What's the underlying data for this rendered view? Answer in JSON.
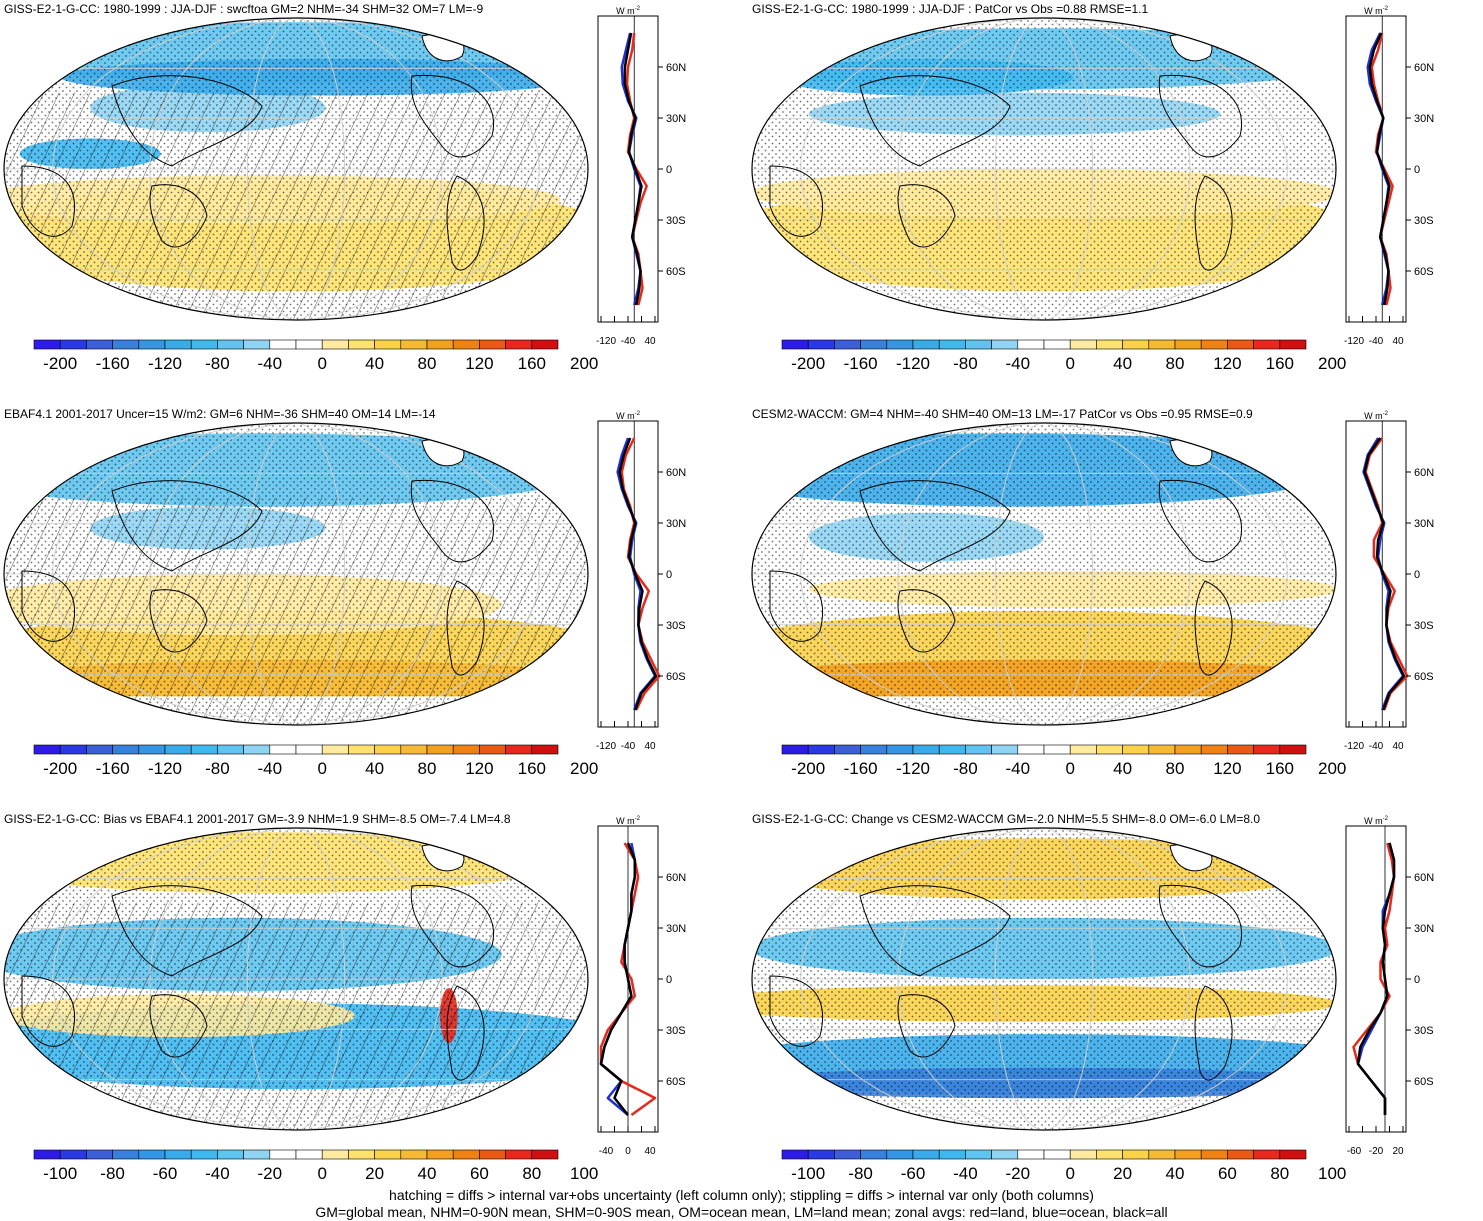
{
  "colors": {
    "cool": [
      "#2d1ce6",
      "#2a39e2",
      "#3c5fd8",
      "#3780dc",
      "#3596e6",
      "#3aabea",
      "#3eb8ef",
      "#5fc4f0",
      "#8fd4f2"
    ],
    "warm": [
      "#ffeaa0",
      "#fde26e",
      "#fad24a",
      "#f5b936",
      "#f3a020",
      "#f08214",
      "#eb5a14",
      "#e8281c",
      "#d01010"
    ],
    "land": "#e8281c",
    "ocean": "#1f2fd8",
    "all": "#000000"
  },
  "footnote": {
    "line1": "hatching = diffs > internal var+obs uncertainty (left column only); stippling = diffs > internal var only (both columns)",
    "line2": "GM=global mean, NHM=0-90N mean, SHM=0-90S mean, OM=ocean mean, LM=land mean; zonal avgs: red=land, blue=ocean, black=all"
  },
  "panels": [
    {
      "title": "GISS-E2-1-G-CC: 1980-1999 : JJA-DJF : swcftoa GM=2 NHM=-34 SHM=32 OM=7 LM=-9",
      "pattern": "hatch",
      "zonal_unit": "W m",
      "zonal_unit_sup": "-2",
      "lat_ticks": [
        "60N",
        "30N",
        "0",
        "30S",
        "60S"
      ],
      "x_ticks": [
        "-120",
        "-40",
        "40"
      ],
      "colorbar_labels": [
        "-200",
        "-160",
        "-120",
        "-80",
        "-40",
        "0",
        "40",
        "80",
        "120",
        "160",
        "200"
      ]
    },
    {
      "title": "GISS-E2-1-G-CC: 1980-1999 : JJA-DJF : PatCor vs Obs =0.88 RMSE=1.1",
      "pattern": "stipple",
      "zonal_unit": "W m",
      "zonal_unit_sup": "-2",
      "lat_ticks": [
        "60N",
        "30N",
        "0",
        "30S",
        "60S"
      ],
      "x_ticks": [
        "-120",
        "-40",
        "40"
      ],
      "colorbar_labels": [
        "-200",
        "-160",
        "-120",
        "-80",
        "-40",
        "0",
        "40",
        "80",
        "120",
        "160",
        "200"
      ]
    },
    {
      "title": "EBAF4.1 2001-2017 Uncer=15 W/m2: GM=6 NHM=-36 SHM=40 OM=14 LM=-14",
      "pattern": "hatch",
      "zonal_unit": "W m",
      "zonal_unit_sup": "-2",
      "lat_ticks": [
        "60N",
        "30N",
        "0",
        "30S",
        "60S"
      ],
      "x_ticks": [
        "-120",
        "-40",
        "40"
      ],
      "colorbar_labels": [
        "-200",
        "-160",
        "-120",
        "-80",
        "-40",
        "0",
        "40",
        "80",
        "120",
        "160",
        "200"
      ]
    },
    {
      "title": "CESM2-WACCM: GM=4 NHM=-40 SHM=40 OM=13 LM=-17 PatCor vs Obs =0.95 RMSE=0.9",
      "pattern": "stipple",
      "zonal_unit": "W m",
      "zonal_unit_sup": "-2",
      "lat_ticks": [
        "60N",
        "30N",
        "0",
        "30S",
        "60S"
      ],
      "x_ticks": [
        "-120",
        "-40",
        "40"
      ],
      "colorbar_labels": [
        "-200",
        "-160",
        "-120",
        "-80",
        "-40",
        "0",
        "40",
        "80",
        "120",
        "160",
        "200"
      ]
    },
    {
      "title": "GISS-E2-1-G-CC: Bias vs EBAF4.1 2001-2017 GM=-3.9 NHM=1.9 SHM=-8.5 OM=-7.4 LM=4.8",
      "pattern": "hatch",
      "zonal_unit": "W m",
      "zonal_unit_sup": "-2",
      "lat_ticks": [
        "60N",
        "30N",
        "0",
        "30S",
        "60S"
      ],
      "x_ticks": [
        "-40",
        "0",
        "40"
      ],
      "colorbar_labels": [
        "-100",
        "-80",
        "-60",
        "-40",
        "-20",
        "0",
        "20",
        "40",
        "60",
        "80",
        "100"
      ]
    },
    {
      "title": "GISS-E2-1-G-CC: Change vs CESM2-WACCM GM=-2.0 NHM=5.5 SHM=-8.0 OM=-6.0 LM=8.0",
      "pattern": "stipple",
      "zonal_unit": "W m",
      "zonal_unit_sup": "-2",
      "lat_ticks": [
        "60N",
        "30N",
        "0",
        "30S",
        "60S"
      ],
      "x_ticks": [
        "-60",
        "-20",
        "20"
      ],
      "colorbar_labels": [
        "-100",
        "-80",
        "-60",
        "-40",
        "-20",
        "0",
        "20",
        "40",
        "60",
        "80",
        "100"
      ]
    }
  ],
  "chart_data": [
    {
      "type": "line",
      "x_axis": "W m-2",
      "y_axis": "latitude",
      "lat": [
        80,
        70,
        60,
        50,
        40,
        30,
        20,
        10,
        0,
        -10,
        -20,
        -30,
        -40,
        -50,
        -60,
        -70,
        -80
      ],
      "xlim": [
        -160,
        100
      ],
      "series": [
        {
          "color_key": "land",
          "values": [
            0,
            -10,
            -30,
            -35,
            -20,
            0,
            -20,
            -30,
            10,
            60,
            30,
            10,
            -10,
            20,
            30,
            40,
            20
          ]
        },
        {
          "color_key": "ocean",
          "values": [
            -20,
            -40,
            -60,
            -55,
            -30,
            10,
            -10,
            -25,
            0,
            30,
            20,
            5,
            -10,
            10,
            30,
            20,
            0
          ]
        },
        {
          "color_key": "all",
          "values": [
            -15,
            -30,
            -45,
            -45,
            -25,
            5,
            -15,
            -25,
            5,
            35,
            20,
            5,
            -10,
            15,
            30,
            25,
            10
          ]
        }
      ]
    },
    {
      "type": "line",
      "x_axis": "W m-2",
      "y_axis": "latitude",
      "lat": [
        80,
        70,
        60,
        50,
        40,
        30,
        20,
        10,
        0,
        -10,
        -20,
        -30,
        -40,
        -50,
        -60,
        -70,
        -80
      ],
      "xlim": [
        -160,
        100
      ],
      "series": [
        {
          "color_key": "land",
          "values": [
            0,
            -20,
            -50,
            -40,
            -20,
            5,
            -20,
            -30,
            10,
            50,
            30,
            10,
            -10,
            20,
            30,
            40,
            20
          ]
        },
        {
          "color_key": "ocean",
          "values": [
            -10,
            -50,
            -70,
            -60,
            -30,
            5,
            -10,
            -25,
            0,
            30,
            20,
            5,
            -10,
            10,
            30,
            20,
            0
          ]
        },
        {
          "color_key": "all",
          "values": [
            -5,
            -40,
            -60,
            -50,
            -25,
            5,
            -15,
            -25,
            5,
            35,
            20,
            5,
            -10,
            15,
            30,
            25,
            10
          ]
        }
      ]
    },
    {
      "type": "line",
      "x_axis": "W m-2",
      "y_axis": "latitude",
      "lat": [
        80,
        70,
        60,
        50,
        40,
        30,
        20,
        10,
        0,
        -10,
        -20,
        -30,
        -40,
        -50,
        -60,
        -70,
        -80
      ],
      "xlim": [
        -160,
        100
      ],
      "series": [
        {
          "color_key": "land",
          "values": [
            0,
            -40,
            -60,
            -50,
            -20,
            0,
            -20,
            -30,
            10,
            70,
            40,
            20,
            40,
            80,
            120,
            50,
            10
          ]
        },
        {
          "color_key": "ocean",
          "values": [
            -30,
            -60,
            -80,
            -60,
            -30,
            10,
            -10,
            -20,
            0,
            30,
            20,
            20,
            30,
            60,
            100,
            30,
            0
          ]
        },
        {
          "color_key": "all",
          "values": [
            -20,
            -50,
            -70,
            -55,
            -25,
            5,
            -15,
            -25,
            5,
            40,
            25,
            20,
            35,
            65,
            105,
            35,
            5
          ]
        }
      ]
    },
    {
      "type": "line",
      "x_axis": "W m-2",
      "y_axis": "latitude",
      "lat": [
        80,
        70,
        60,
        50,
        40,
        30,
        20,
        10,
        0,
        -10,
        -20,
        -30,
        -40,
        -50,
        -60,
        -70,
        -80
      ],
      "xlim": [
        -160,
        100
      ],
      "series": [
        {
          "color_key": "land",
          "values": [
            0,
            -60,
            -80,
            -50,
            -20,
            0,
            -40,
            -40,
            10,
            60,
            30,
            20,
            40,
            80,
            120,
            40,
            10
          ]
        },
        {
          "color_key": "ocean",
          "values": [
            -20,
            -70,
            -90,
            -60,
            -30,
            10,
            -10,
            -20,
            0,
            30,
            20,
            20,
            30,
            60,
            100,
            30,
            0
          ]
        },
        {
          "color_key": "all",
          "values": [
            -10,
            -65,
            -85,
            -55,
            -25,
            5,
            -20,
            -25,
            5,
            40,
            25,
            20,
            35,
            65,
            105,
            35,
            5
          ]
        }
      ]
    },
    {
      "type": "line",
      "x_axis": "W m-2",
      "y_axis": "latitude",
      "lat": [
        80,
        70,
        60,
        50,
        40,
        30,
        20,
        10,
        0,
        -10,
        -20,
        -30,
        -40,
        -50,
        -60,
        -70,
        -80
      ],
      "xlim": [
        -40,
        40
      ],
      "series": [
        {
          "color_key": "land",
          "values": [
            -5,
            10,
            15,
            10,
            5,
            0,
            -5,
            -10,
            5,
            10,
            -10,
            -30,
            -40,
            -40,
            -10,
            40,
            5
          ]
        },
        {
          "color_key": "ocean",
          "values": [
            5,
            10,
            10,
            5,
            5,
            0,
            -5,
            -5,
            0,
            5,
            -10,
            -25,
            -35,
            -40,
            -10,
            -30,
            0
          ]
        },
        {
          "color_key": "all",
          "values": [
            0,
            10,
            10,
            5,
            5,
            0,
            -5,
            -5,
            0,
            5,
            -10,
            -25,
            -35,
            -40,
            -10,
            -20,
            0
          ]
        }
      ]
    },
    {
      "type": "line",
      "x_axis": "W m-2",
      "y_axis": "latitude",
      "lat": [
        80,
        70,
        60,
        50,
        40,
        30,
        20,
        10,
        0,
        -10,
        -20,
        -30,
        -40,
        -50,
        -60,
        -70,
        -80
      ],
      "xlim": [
        -80,
        40
      ],
      "series": [
        {
          "color_key": "land",
          "values": [
            5,
            15,
            20,
            15,
            10,
            0,
            5,
            -10,
            -10,
            10,
            -10,
            -40,
            -70,
            -60,
            -30,
            0,
            0
          ]
        },
        {
          "color_key": "ocean",
          "values": [
            10,
            20,
            20,
            10,
            -5,
            -5,
            0,
            -5,
            0,
            5,
            -10,
            -30,
            -50,
            -60,
            -30,
            0,
            0
          ]
        },
        {
          "color_key": "all",
          "values": [
            10,
            20,
            20,
            10,
            0,
            -5,
            0,
            -5,
            0,
            5,
            -10,
            -35,
            -55,
            -60,
            -30,
            0,
            0
          ]
        }
      ]
    }
  ]
}
